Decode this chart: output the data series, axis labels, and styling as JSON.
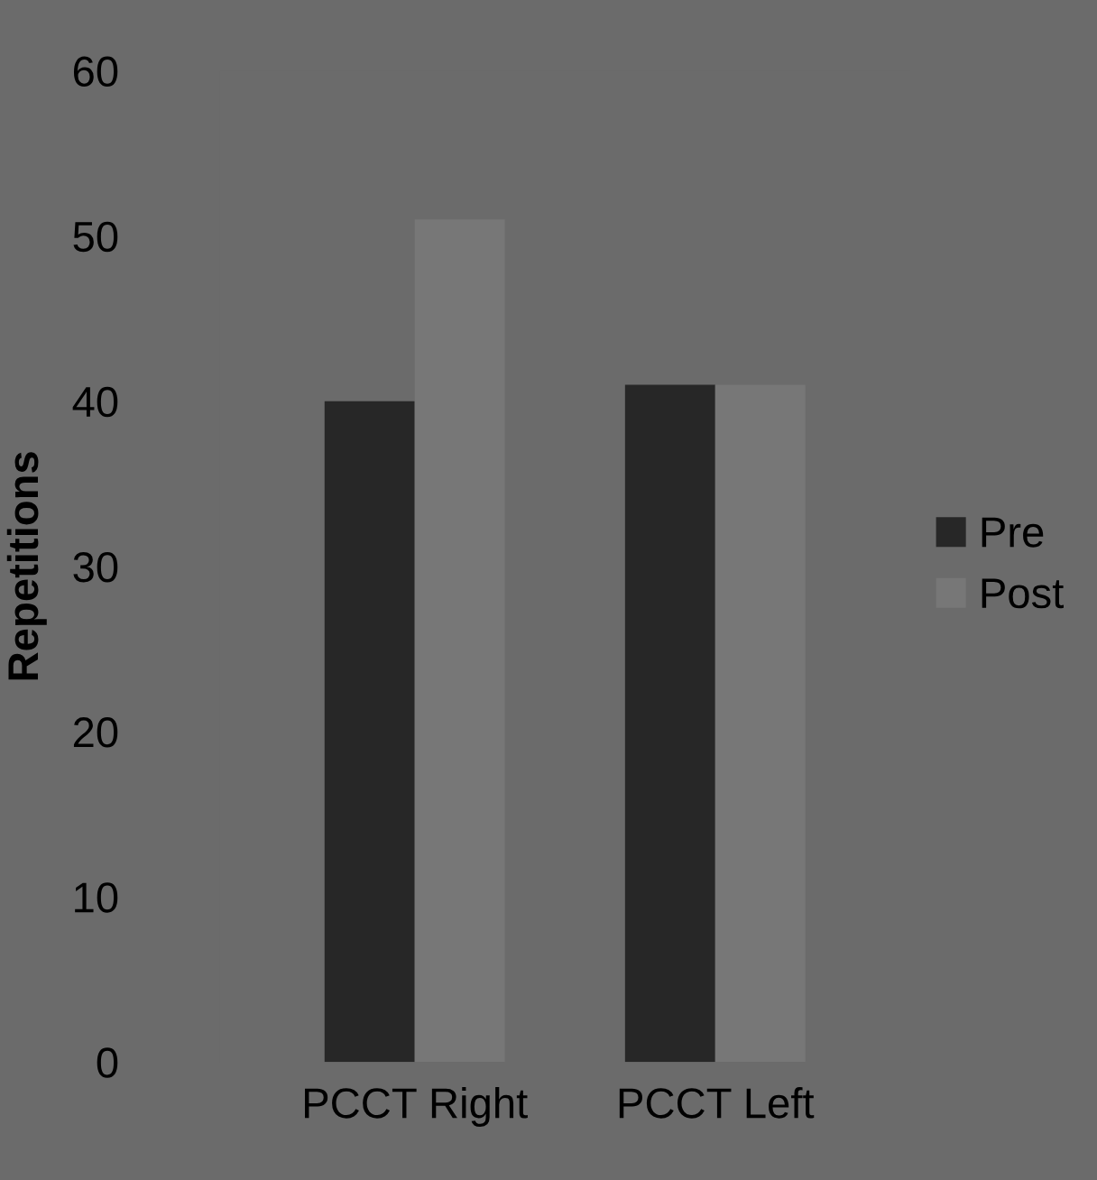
{
  "chart_data": {
    "type": "bar",
    "ylabel": "Repetitions",
    "categories": [
      "PCCT Right",
      "PCCT Left"
    ],
    "series": [
      {
        "name": "Pre",
        "color": "#272727",
        "values": [
          40,
          41
        ]
      },
      {
        "name": "Post",
        "color": "#777777",
        "values": [
          51,
          41
        ]
      }
    ],
    "ylim": [
      0,
      60
    ],
    "yticks": [
      0,
      10,
      20,
      30,
      40,
      50,
      60
    ],
    "grid": false,
    "legend": "right"
  }
}
